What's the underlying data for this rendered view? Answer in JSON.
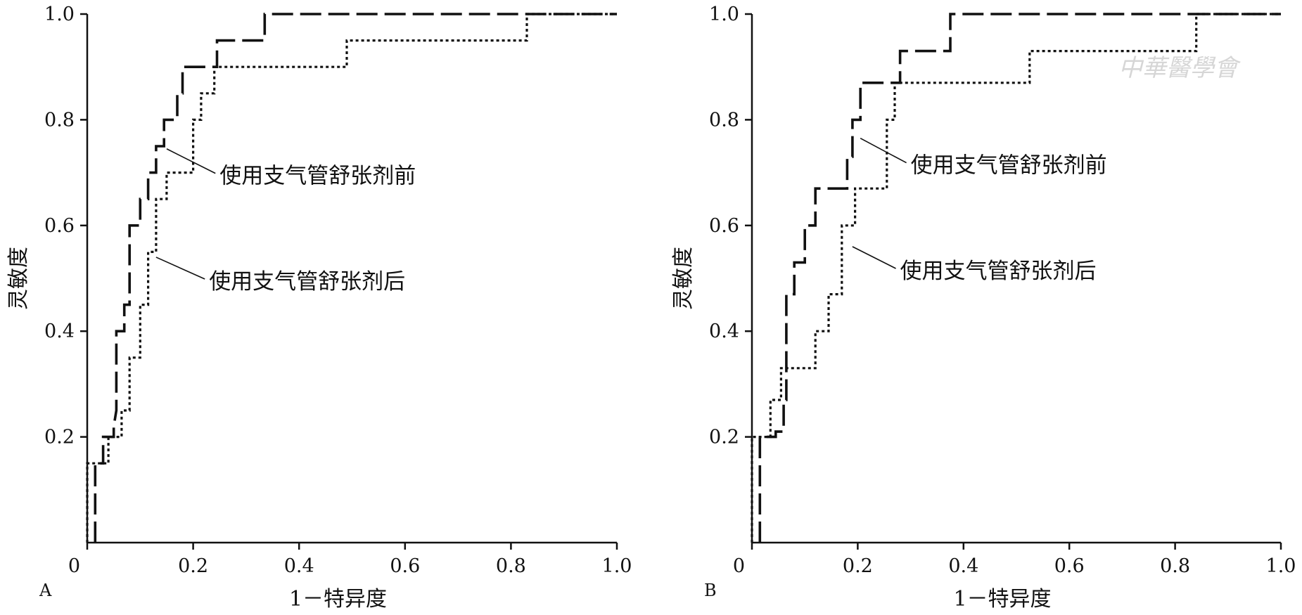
{
  "watermark": "中華醫學會",
  "chart_data": [
    {
      "type": "line",
      "panel_label": "A",
      "xlabel": "1－特异度",
      "ylabel": "灵敏度",
      "xlim": [
        0,
        1.0
      ],
      "ylim": [
        0,
        1.0
      ],
      "x_ticks": [
        0,
        0.2,
        0.4,
        0.6,
        0.8,
        1.0
      ],
      "x_tick_labels": [
        "0",
        "0.2",
        "0.4",
        "0.6",
        "0.8",
        "1.0"
      ],
      "y_ticks": [
        0.2,
        0.4,
        0.6,
        0.8,
        1.0
      ],
      "y_tick_labels": [
        "0.2",
        "0.4",
        "0.6",
        "0.8",
        "1.0"
      ],
      "grid": false,
      "series": [
        {
          "name": "使用支气管舒张剂前",
          "dash": "long-dash",
          "points": [
            [
              0.015,
              0
            ],
            [
              0.015,
              0.15
            ],
            [
              0.03,
              0.15
            ],
            [
              0.03,
              0.2
            ],
            [
              0.05,
              0.2
            ],
            [
              0.05,
              0.22
            ],
            [
              0.055,
              0.25
            ],
            [
              0.055,
              0.4
            ],
            [
              0.07,
              0.4
            ],
            [
              0.07,
              0.45
            ],
            [
              0.08,
              0.45
            ],
            [
              0.08,
              0.6
            ],
            [
              0.1,
              0.6
            ],
            [
              0.1,
              0.65
            ],
            [
              0.115,
              0.65
            ],
            [
              0.115,
              0.7
            ],
            [
              0.13,
              0.7
            ],
            [
              0.13,
              0.75
            ],
            [
              0.145,
              0.75
            ],
            [
              0.145,
              0.8
            ],
            [
              0.17,
              0.8
            ],
            [
              0.17,
              0.85
            ],
            [
              0.18,
              0.85
            ],
            [
              0.18,
              0.9
            ],
            [
              0.245,
              0.9
            ],
            [
              0.245,
              0.95
            ],
            [
              0.335,
              0.95
            ],
            [
              0.335,
              1.0
            ],
            [
              1.0,
              1.0
            ]
          ]
        },
        {
          "name": "使用支气管舒张剂后",
          "dash": "dotted",
          "points": [
            [
              0,
              0
            ],
            [
              0,
              0.15
            ],
            [
              0.04,
              0.15
            ],
            [
              0.04,
              0.2
            ],
            [
              0.065,
              0.2
            ],
            [
              0.065,
              0.25
            ],
            [
              0.08,
              0.25
            ],
            [
              0.08,
              0.35
            ],
            [
              0.1,
              0.35
            ],
            [
              0.1,
              0.45
            ],
            [
              0.115,
              0.45
            ],
            [
              0.115,
              0.55
            ],
            [
              0.13,
              0.55
            ],
            [
              0.13,
              0.65
            ],
            [
              0.15,
              0.65
            ],
            [
              0.15,
              0.7
            ],
            [
              0.2,
              0.7
            ],
            [
              0.2,
              0.8
            ],
            [
              0.215,
              0.8
            ],
            [
              0.215,
              0.85
            ],
            [
              0.24,
              0.85
            ],
            [
              0.24,
              0.9
            ],
            [
              0.49,
              0.9
            ],
            [
              0.49,
              0.95
            ],
            [
              0.83,
              0.95
            ],
            [
              0.83,
              1.0
            ],
            [
              1.0,
              1.0
            ]
          ]
        }
      ],
      "annotations": [
        {
          "text": "使用支气管舒张剂前",
          "series": 0,
          "point": [
            0.15,
            0.745
          ],
          "label_at": [
            0.25,
            0.68
          ]
        },
        {
          "text": "使用支气管舒张剂后",
          "series": 1,
          "point": [
            0.13,
            0.54
          ],
          "label_at": [
            0.23,
            0.48
          ]
        }
      ]
    },
    {
      "type": "line",
      "panel_label": "B",
      "xlabel": "1－特异度",
      "ylabel": "灵敏度",
      "xlim": [
        0,
        1.0
      ],
      "ylim": [
        0,
        1.0
      ],
      "x_ticks": [
        0,
        0.2,
        0.4,
        0.6,
        0.8,
        1.0
      ],
      "x_tick_labels": [
        "0",
        "0.2",
        "0.4",
        "0.6",
        "0.8",
        "1.0"
      ],
      "y_ticks": [
        0.2,
        0.4,
        0.6,
        0.8,
        1.0
      ],
      "y_tick_labels": [
        "0.2",
        "0.4",
        "0.6",
        "0.8",
        "1.0"
      ],
      "grid": false,
      "series": [
        {
          "name": "使用支气管舒张剂前",
          "dash": "long-dash",
          "points": [
            [
              0.015,
              0
            ],
            [
              0.015,
              0.2
            ],
            [
              0.045,
              0.2
            ],
            [
              0.045,
              0.21
            ],
            [
              0.06,
              0.21
            ],
            [
              0.06,
              0.27
            ],
            [
              0.065,
              0.27
            ],
            [
              0.065,
              0.47
            ],
            [
              0.08,
              0.47
            ],
            [
              0.08,
              0.53
            ],
            [
              0.1,
              0.53
            ],
            [
              0.1,
              0.6
            ],
            [
              0.12,
              0.6
            ],
            [
              0.12,
              0.67
            ],
            [
              0.18,
              0.67
            ],
            [
              0.18,
              0.73
            ],
            [
              0.19,
              0.73
            ],
            [
              0.19,
              0.8
            ],
            [
              0.205,
              0.8
            ],
            [
              0.205,
              0.87
            ],
            [
              0.28,
              0.87
            ],
            [
              0.28,
              0.93
            ],
            [
              0.375,
              0.93
            ],
            [
              0.375,
              1.0
            ],
            [
              1.0,
              1.0
            ]
          ]
        },
        {
          "name": "使用支气管舒张剂后",
          "dash": "dotted",
          "points": [
            [
              0,
              0
            ],
            [
              0,
              0.2
            ],
            [
              0.035,
              0.2
            ],
            [
              0.035,
              0.27
            ],
            [
              0.055,
              0.27
            ],
            [
              0.055,
              0.33
            ],
            [
              0.12,
              0.33
            ],
            [
              0.12,
              0.4
            ],
            [
              0.145,
              0.4
            ],
            [
              0.145,
              0.47
            ],
            [
              0.17,
              0.47
            ],
            [
              0.17,
              0.6
            ],
            [
              0.195,
              0.6
            ],
            [
              0.195,
              0.67
            ],
            [
              0.255,
              0.67
            ],
            [
              0.255,
              0.8
            ],
            [
              0.27,
              0.8
            ],
            [
              0.27,
              0.87
            ],
            [
              0.525,
              0.87
            ],
            [
              0.525,
              0.93
            ],
            [
              0.84,
              0.93
            ],
            [
              0.84,
              1.0
            ],
            [
              1.0,
              1.0
            ]
          ]
        }
      ],
      "annotations": [
        {
          "text": "使用支气管舒张剂前",
          "series": 0,
          "point": [
            0.205,
            0.765
          ],
          "label_at": [
            0.3,
            0.7
          ]
        },
        {
          "text": "使用支气管舒张剂后",
          "series": 1,
          "point": [
            0.19,
            0.56
          ],
          "label_at": [
            0.28,
            0.5
          ]
        }
      ]
    }
  ]
}
